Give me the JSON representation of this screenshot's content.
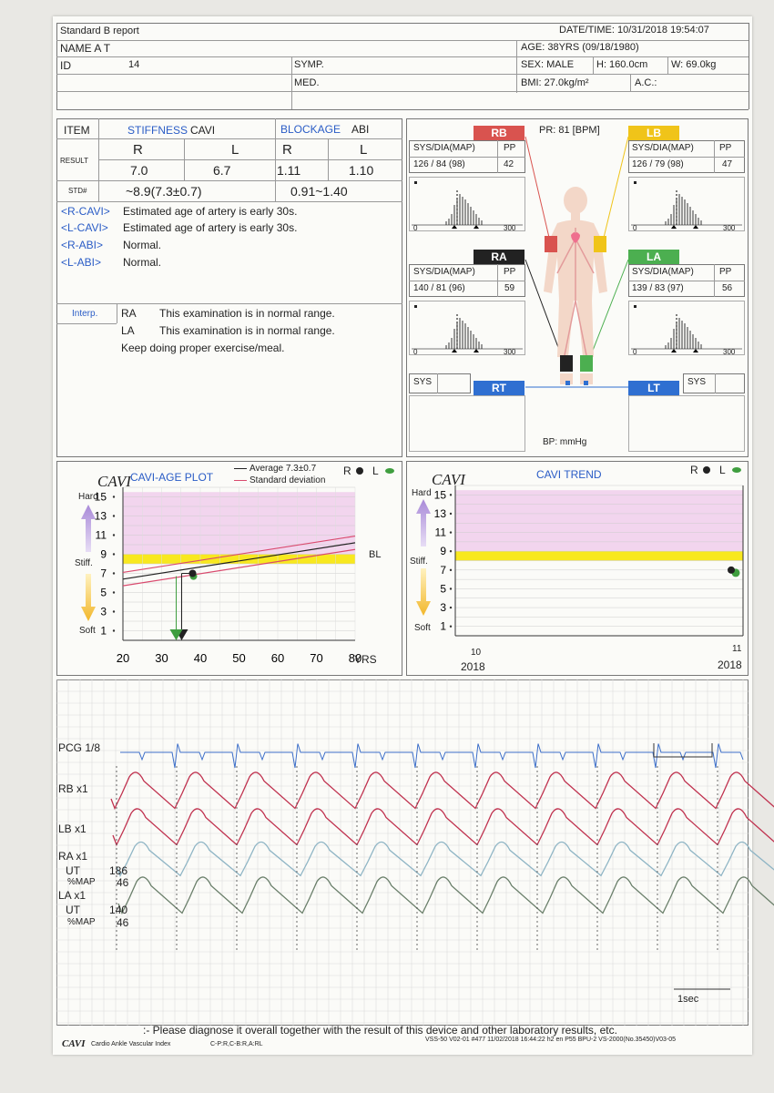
{
  "header": {
    "report_title": "Standard B report",
    "datetime": "DATE/TIME: 10/31/2018  19:54:07",
    "name": "NAME A T",
    "age": "AGE: 38YRS  (09/18/1980)",
    "id_label": "ID",
    "id_value": "14",
    "symp": "SYMP.",
    "sex": "SEX: MALE",
    "height": "H: 160.0cm",
    "weight": "W: 69.0kg",
    "med": "MED.",
    "bmi": "BMI: 27.0kg/m²",
    "ac": "A.C.:"
  },
  "results_table": {
    "item": "ITEM",
    "stiffness": "STIFFNESS",
    "cavi": "CAVI",
    "blockage": "BLOCKAGE",
    "abi": "ABI",
    "result": "RESULT",
    "r": "R",
    "l": "L",
    "cavi_r": "7.0",
    "cavi_l": "6.7",
    "abi_r": "1.11",
    "abi_l": "1.10",
    "std": "STD#",
    "cavi_std": "~8.9(7.3±0.7)",
    "abi_std": "0.91~1.40"
  },
  "findings": [
    {
      "tag": "<R-CAVI>",
      "text": "Estimated age of artery is early 30s."
    },
    {
      "tag": "<L-CAVI>",
      "text": "Estimated age of artery is early 30s."
    },
    {
      "tag": "<R-ABI>",
      "text": "Normal."
    },
    {
      "tag": "<L-ABI>",
      "text": "Normal."
    }
  ],
  "interp": {
    "label": "Interp.",
    "ra": "RA",
    "ra_text": "This examination is in normal range.",
    "la": "LA",
    "la_text": "This examination is in normal range.",
    "advice": "Keep doing proper exercise/meal."
  },
  "bp_panel": {
    "pr": "PR: 81 [BPM]",
    "col_sys": "SYS/DIA(MAP)",
    "col_pp": "PP",
    "rb": {
      "label": "RB",
      "sysdia": "126 / 84  (98)",
      "pp": "42"
    },
    "lb": {
      "label": "LB",
      "sysdia": "126 / 79  (98)",
      "pp": "47"
    },
    "ra": {
      "label": "RA",
      "sysdia": "140 / 81  (96)",
      "pp": "59"
    },
    "la": {
      "label": "LA",
      "sysdia": "139 / 83  (97)",
      "pp": "56"
    },
    "rt": "RT",
    "lt": "LT",
    "sys": "SYS",
    "hist_axis_0": "0",
    "hist_axis_300": "300",
    "bp_unit": "BP: mmHg",
    "colors": {
      "rb": "#d9534f",
      "lb": "#f0c419",
      "ra": "#222222",
      "la": "#4caf50",
      "tt": "#2f6fd1"
    }
  },
  "cavi_age_plot": {
    "logo": "CAVI",
    "title": "CAVI-AGE PLOT",
    "legend_avg": "Average 7.3±0.7",
    "legend_sd": "Standard deviation",
    "legend_r": "R",
    "legend_l": "L",
    "hard": "Hard",
    "stiff": "Stiff.",
    "soft": "Soft",
    "bl": "BL",
    "x_unit": "YRS",
    "x_ticks": [
      "20",
      "30",
      "40",
      "50",
      "60",
      "70",
      "80"
    ],
    "y_ticks": [
      "15",
      "13",
      "11",
      "9",
      "7",
      "5",
      "3",
      "1"
    ]
  },
  "cavi_trend": {
    "logo": "CAVI",
    "title": "CAVI TREND",
    "legend_r": "R",
    "legend_l": "L",
    "hard": "Hard",
    "stiff": "Stiff.",
    "soft": "Soft",
    "y_ticks": [
      "15",
      "13",
      "11",
      "9",
      "7",
      "5",
      "3",
      "1"
    ],
    "x_left_month": "10",
    "x_left_year": "2018",
    "x_right_month": "11",
    "x_right_year": "2018"
  },
  "waveforms": {
    "pcg": "PCG 1/8",
    "rb": "RB x1",
    "lb": "LB x1",
    "ra": "RA x1",
    "ra_ut_label": "UT",
    "ra_ut": "186",
    "ra_map_label": "%MAP",
    "ra_map": "46",
    "la": "LA x1",
    "la_ut_label": "UT",
    "la_ut": "140",
    "la_map_label": "%MAP",
    "la_map": "46",
    "scale": "1sec"
  },
  "footer": {
    "note": ":- Please diagnose it overall together with the result of this device and other laboratory results, etc.",
    "brand": "CAVI",
    "brand_sub": "Cardio Ankle Vascular Index",
    "codes": "C-P:R,C-B:R,A:RL",
    "device": "VSS-50  V02-01 #477  11/02/2018 16:44:22  h2 en P55 BPU-2 VS-2000(No.35450)V03-05"
  },
  "chart_data": [
    {
      "type": "line",
      "title": "CAVI-AGE PLOT",
      "xlabel": "YRS",
      "ylabel": "CAVI",
      "xlim": [
        20,
        80
      ],
      "ylim": [
        0,
        16
      ],
      "series": [
        {
          "name": "Average 7.3±0.7",
          "x": [
            20,
            80
          ],
          "y": [
            6.4,
            10.2
          ]
        },
        {
          "name": "Standard deviation",
          "x": [
            20,
            80
          ],
          "y": [
            7.1,
            10.9
          ]
        },
        {
          "name": "Standard deviation",
          "x": [
            20,
            80
          ],
          "y": [
            5.7,
            9.5
          ]
        },
        {
          "name": "R",
          "x": [
            38
          ],
          "y": [
            7.0
          ]
        },
        {
          "name": "L",
          "x": [
            38
          ],
          "y": [
            6.7
          ]
        }
      ]
    },
    {
      "type": "scatter",
      "title": "CAVI TREND",
      "ylabel": "CAVI",
      "ylim": [
        0,
        16
      ],
      "series": [
        {
          "name": "R",
          "x": [
            "10/2018"
          ],
          "y": [
            7.0
          ]
        },
        {
          "name": "L",
          "x": [
            "10/2018"
          ],
          "y": [
            6.7
          ]
        }
      ]
    }
  ]
}
